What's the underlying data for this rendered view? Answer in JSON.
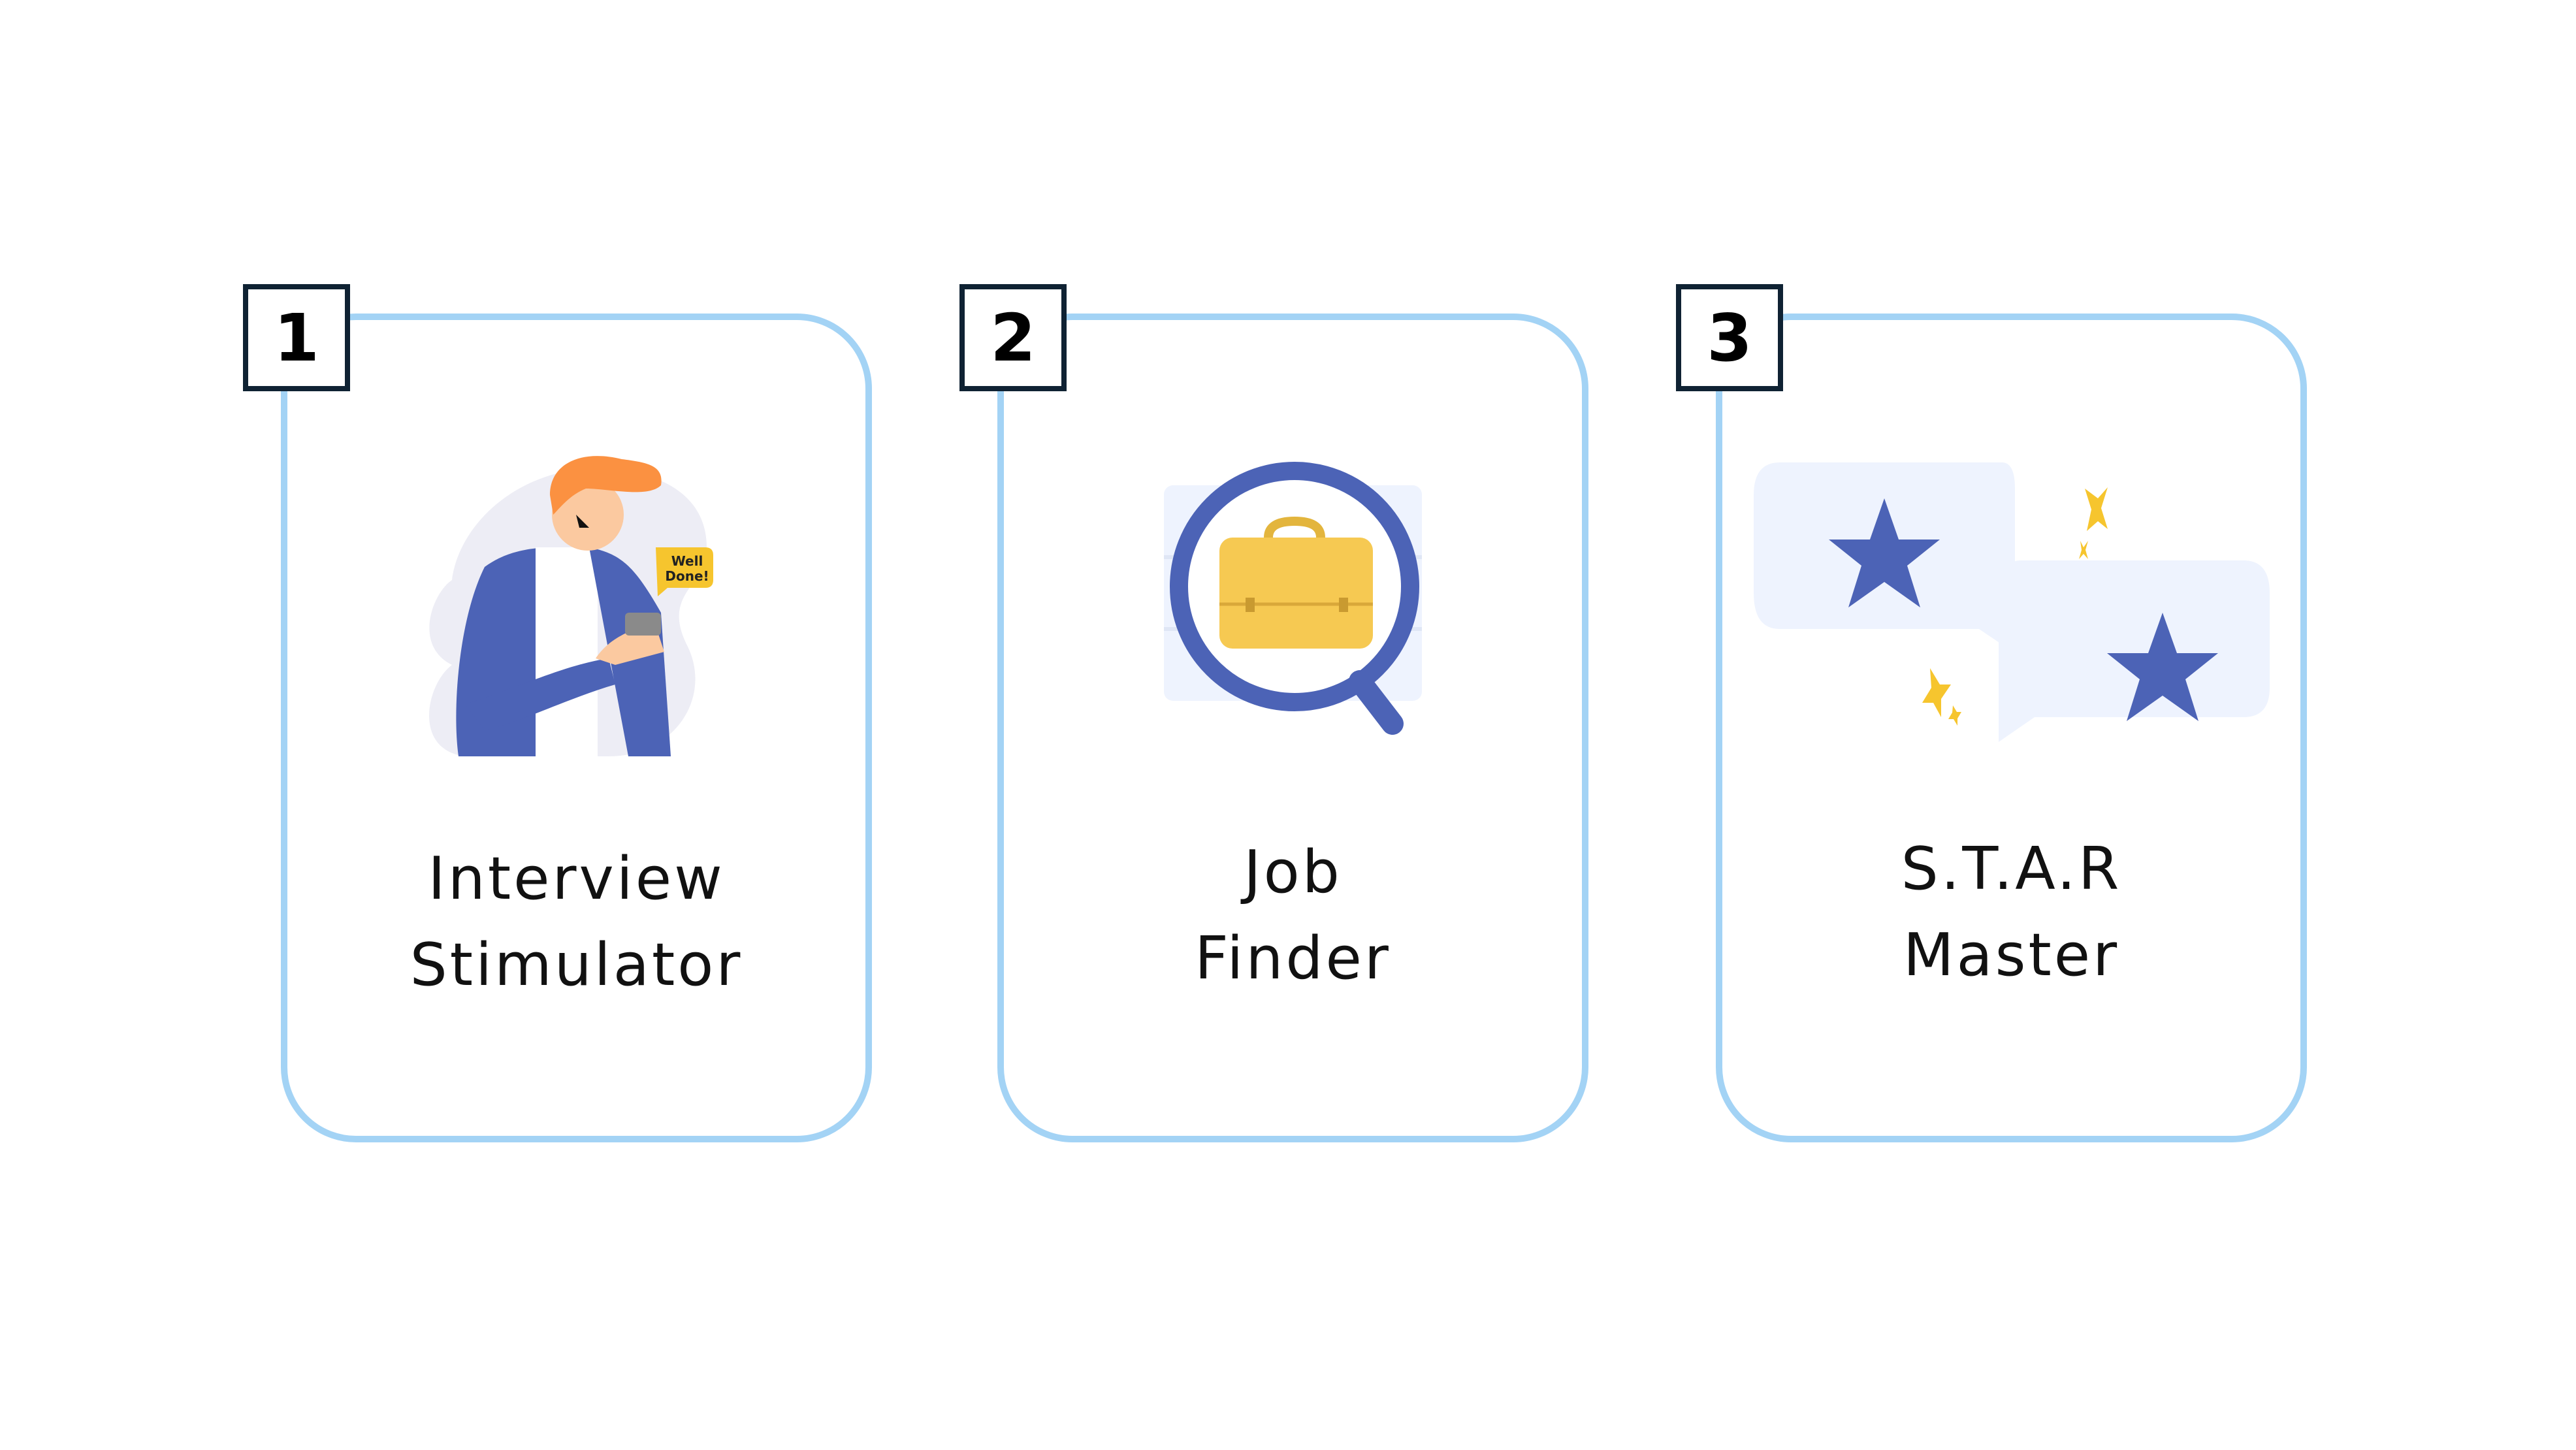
{
  "cards": [
    {
      "number": "1",
      "title_line1": "Interview",
      "title_line2": "Stimulator",
      "speech_bubble_line1": "Well",
      "speech_bubble_line2": "Done!",
      "icon": "person-with-phone-illustration"
    },
    {
      "number": "2",
      "title_line1": "Job",
      "title_line2": "Finder",
      "icon": "magnifier-briefcase-illustration"
    },
    {
      "number": "3",
      "title_line1": "S.T.A.R",
      "title_line2": "Master",
      "icon": "star-chat-bubbles-illustration"
    }
  ],
  "colors": {
    "card_border": "#a3d3f5",
    "badge_border": "#0f2233",
    "accent_blue": "#4c63b6",
    "accent_yellow": "#f6c52e",
    "bubble_bg": "#eef3fe"
  }
}
